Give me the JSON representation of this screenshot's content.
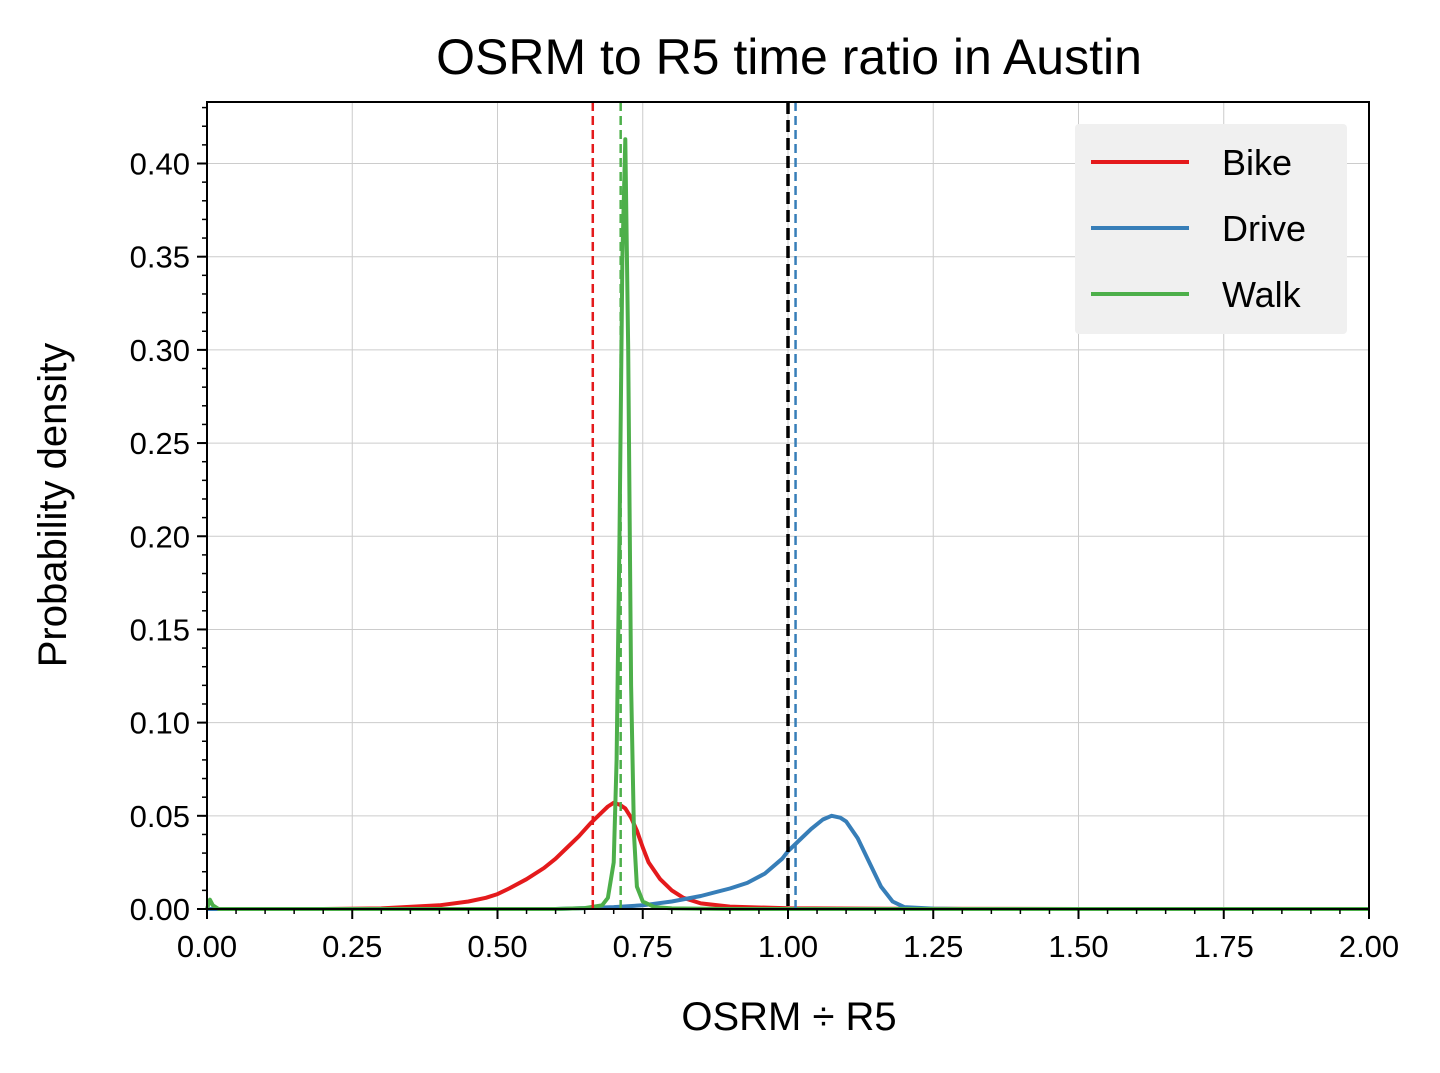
{
  "chart_data": {
    "type": "line",
    "title": "OSRM to R5 time ratio in Austin",
    "xlabel": "OSRM ÷ R5",
    "ylabel": "Probability density",
    "xlim": [
      0,
      2
    ],
    "ylim": [
      0,
      0.433
    ],
    "xticks": [
      0,
      0.25,
      0.5,
      0.75,
      1.0,
      1.25,
      1.5,
      1.75,
      2.0
    ],
    "xtick_labels": [
      "0.00",
      "0.25",
      "0.50",
      "0.75",
      "1.00",
      "1.25",
      "1.50",
      "1.75",
      "2.00"
    ],
    "yticks": [
      0,
      0.05,
      0.1,
      0.15,
      0.2,
      0.25,
      0.3,
      0.35,
      0.4
    ],
    "ytick_labels": [
      "0.00",
      "0.05",
      "0.10",
      "0.15",
      "0.20",
      "0.25",
      "0.30",
      "0.35",
      "0.40"
    ],
    "grid": true,
    "legend_position": "top-right",
    "series": [
      {
        "name": "Bike",
        "color": "#e41a1c",
        "mean_line_x": 0.664,
        "points": [
          [
            0,
            0
          ],
          [
            0.2,
            0
          ],
          [
            0.3,
            0.0003
          ],
          [
            0.4,
            0.002
          ],
          [
            0.45,
            0.004
          ],
          [
            0.48,
            0.006
          ],
          [
            0.5,
            0.008
          ],
          [
            0.52,
            0.011
          ],
          [
            0.55,
            0.016
          ],
          [
            0.58,
            0.022
          ],
          [
            0.6,
            0.027
          ],
          [
            0.62,
            0.033
          ],
          [
            0.64,
            0.039
          ],
          [
            0.66,
            0.046
          ],
          [
            0.68,
            0.052
          ],
          [
            0.69,
            0.055
          ],
          [
            0.7,
            0.057
          ],
          [
            0.71,
            0.056
          ],
          [
            0.72,
            0.054
          ],
          [
            0.73,
            0.049
          ],
          [
            0.74,
            0.042
          ],
          [
            0.75,
            0.033
          ],
          [
            0.76,
            0.025
          ],
          [
            0.78,
            0.016
          ],
          [
            0.8,
            0.01
          ],
          [
            0.82,
            0.006
          ],
          [
            0.85,
            0.003
          ],
          [
            0.9,
            0.0013
          ],
          [
            1.0,
            0.0004
          ],
          [
            1.2,
            0.0001
          ],
          [
            1.5,
            0
          ],
          [
            2.0,
            0
          ]
        ]
      },
      {
        "name": "Drive",
        "color": "#377eb8",
        "mean_line_x": 1.013,
        "points": [
          [
            0,
            0
          ],
          [
            0.6,
            0
          ],
          [
            0.65,
            0.0005
          ],
          [
            0.7,
            0.001
          ],
          [
            0.75,
            0.002
          ],
          [
            0.8,
            0.004
          ],
          [
            0.85,
            0.007
          ],
          [
            0.9,
            0.011
          ],
          [
            0.93,
            0.014
          ],
          [
            0.96,
            0.019
          ],
          [
            0.99,
            0.027
          ],
          [
            1.0,
            0.031
          ],
          [
            1.02,
            0.037
          ],
          [
            1.04,
            0.043
          ],
          [
            1.06,
            0.048
          ],
          [
            1.075,
            0.05
          ],
          [
            1.09,
            0.049
          ],
          [
            1.1,
            0.047
          ],
          [
            1.12,
            0.038
          ],
          [
            1.14,
            0.025
          ],
          [
            1.16,
            0.012
          ],
          [
            1.18,
            0.004
          ],
          [
            1.2,
            0.001
          ],
          [
            1.25,
            0.0002
          ],
          [
            1.3,
            0
          ],
          [
            2.0,
            0
          ]
        ]
      },
      {
        "name": "Walk",
        "color": "#4daf4a",
        "mean_line_x": 0.712,
        "points": [
          [
            0,
            0
          ],
          [
            0.005,
            0.005
          ],
          [
            0.01,
            0.002
          ],
          [
            0.02,
            0
          ],
          [
            0.6,
            0
          ],
          [
            0.65,
            0.0005
          ],
          [
            0.68,
            0.002
          ],
          [
            0.69,
            0.006
          ],
          [
            0.7,
            0.025
          ],
          [
            0.705,
            0.08
          ],
          [
            0.71,
            0.2
          ],
          [
            0.715,
            0.35
          ],
          [
            0.72,
            0.413
          ],
          [
            0.725,
            0.3
          ],
          [
            0.73,
            0.12
          ],
          [
            0.735,
            0.04
          ],
          [
            0.74,
            0.012
          ],
          [
            0.75,
            0.004
          ],
          [
            0.77,
            0.001
          ],
          [
            0.8,
            0.0003
          ],
          [
            0.9,
            0
          ],
          [
            2.0,
            0
          ]
        ]
      }
    ],
    "reference_line": {
      "x": 1.0,
      "color": "#000000",
      "style": "dashed"
    }
  }
}
